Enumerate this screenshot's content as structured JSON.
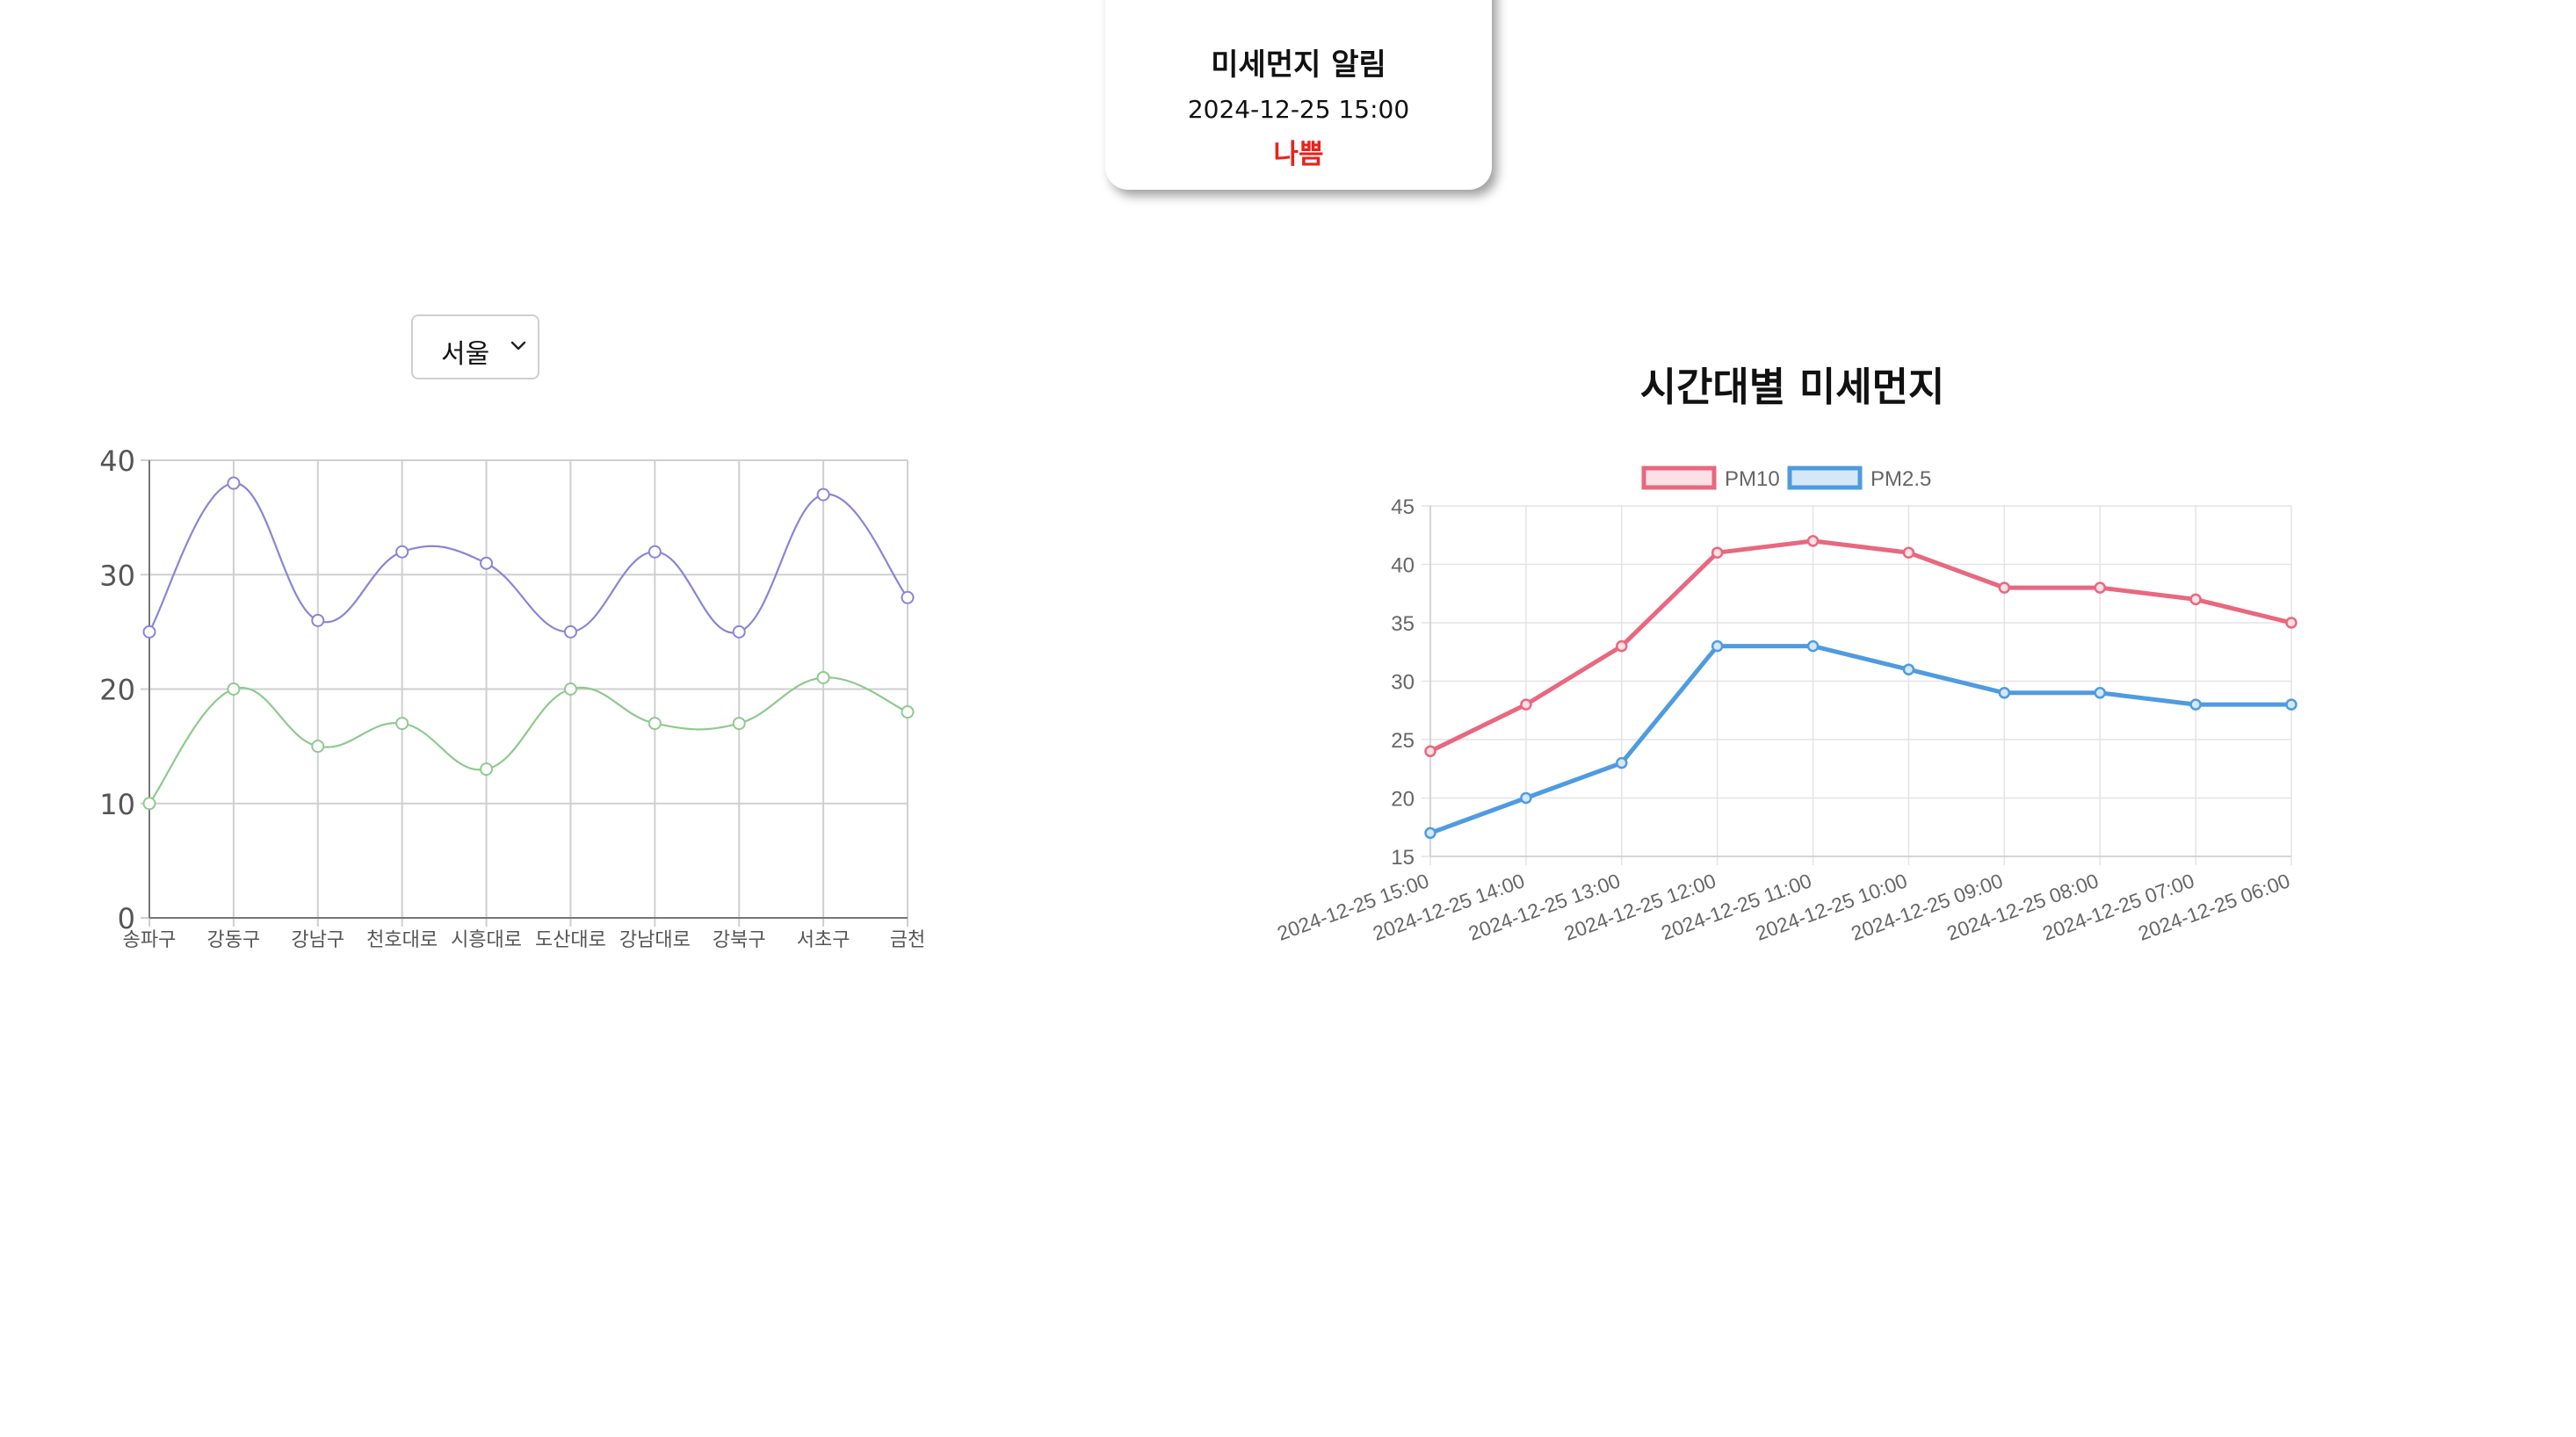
{
  "alert": {
    "title": "미세먼지 알림",
    "time": "2024-12-25 15:00",
    "status": "나쁨",
    "status_color": "#e8231b"
  },
  "region_select": {
    "value": "서울"
  },
  "hourly_title": "시간대별 미세먼지",
  "chart_data": [
    {
      "type": "line",
      "smooth": true,
      "categories": [
        "송파구",
        "강동구",
        "강남구",
        "천호대로",
        "시흥대로",
        "도산대로",
        "강남대로",
        "강북구",
        "서초구",
        "금천"
      ],
      "series": [
        {
          "values": [
            25,
            38,
            26,
            32,
            31,
            25,
            32,
            25,
            37,
            28
          ],
          "color": "#8a84d6"
        },
        {
          "values": [
            10,
            20,
            15,
            17,
            13,
            20,
            17,
            17,
            21,
            18
          ],
          "color": "#8fc98f"
        }
      ],
      "yticks": [
        0,
        10,
        20,
        30,
        40
      ],
      "ylim": [
        0,
        40
      ],
      "grid": true,
      "legend": false
    },
    {
      "type": "line",
      "categories": [
        "2024-12-25 15:00",
        "2024-12-25 14:00",
        "2024-12-25 13:00",
        "2024-12-25 12:00",
        "2024-12-25 11:00",
        "2024-12-25 10:00",
        "2024-12-25 09:00",
        "2024-12-25 08:00",
        "2024-12-25 07:00",
        "2024-12-25 06:00"
      ],
      "series": [
        {
          "name": "PM10",
          "values": [
            24,
            28,
            33,
            41,
            42,
            41,
            38,
            38,
            37,
            35
          ],
          "color": "#e8687f",
          "fill": "#fbe0e5"
        },
        {
          "name": "PM2.5",
          "values": [
            17,
            20,
            23,
            33,
            33,
            31,
            29,
            29,
            28,
            28
          ],
          "color": "#4f9be0",
          "fill": "#d5e8f7"
        }
      ],
      "yticks": [
        15,
        20,
        25,
        30,
        35,
        40,
        45
      ],
      "ylim": [
        15,
        45
      ],
      "grid": true,
      "legend": "top"
    }
  ]
}
